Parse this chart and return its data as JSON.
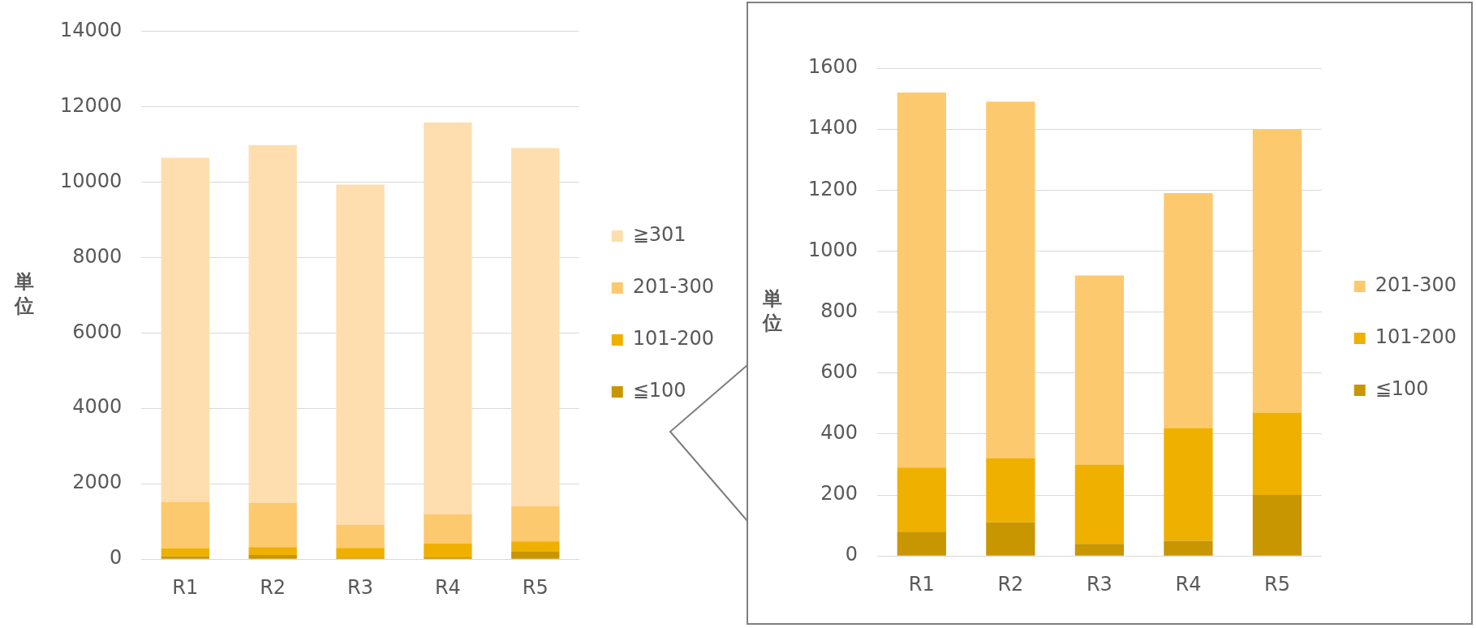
{
  "chart_data": [
    {
      "type": "bar",
      "ylabel": "単位",
      "categories": [
        "R1",
        "R2",
        "R3",
        "R4",
        "R5"
      ],
      "stacked": true,
      "ylim": [
        0,
        14000
      ],
      "yticks": [
        0,
        2000,
        4000,
        6000,
        8000,
        10000,
        12000,
        14000
      ],
      "grid": "y",
      "legend": "right",
      "series": [
        {
          "name": "≦100",
          "color": "#c89600",
          "values": [
            80,
            110,
            40,
            50,
            200
          ]
        },
        {
          "name": "101-200",
          "color": "#f0b000",
          "values": [
            210,
            210,
            260,
            370,
            270
          ]
        },
        {
          "name": "201-300",
          "color": "#fdc96f",
          "values": [
            1230,
            1170,
            620,
            770,
            930
          ]
        },
        {
          "name": "≧301",
          "color": "#fedeae",
          "values": [
            9120,
            9490,
            9010,
            10390,
            9500
          ]
        }
      ]
    },
    {
      "type": "bar",
      "ylabel": "単位",
      "categories": [
        "R1",
        "R2",
        "R3",
        "R4",
        "R5"
      ],
      "stacked": true,
      "ylim": [
        0,
        1600
      ],
      "yticks": [
        0,
        200,
        400,
        600,
        800,
        1000,
        1200,
        1400,
        1600
      ],
      "grid": "y",
      "legend": "right",
      "series": [
        {
          "name": "≦100",
          "color": "#c89600",
          "values": [
            80,
            110,
            40,
            50,
            200
          ]
        },
        {
          "name": "101-200",
          "color": "#f0b000",
          "values": [
            210,
            210,
            260,
            370,
            270
          ]
        },
        {
          "name": "201-300",
          "color": "#fdc96f",
          "values": [
            1230,
            1170,
            620,
            770,
            930
          ]
        }
      ]
    }
  ]
}
